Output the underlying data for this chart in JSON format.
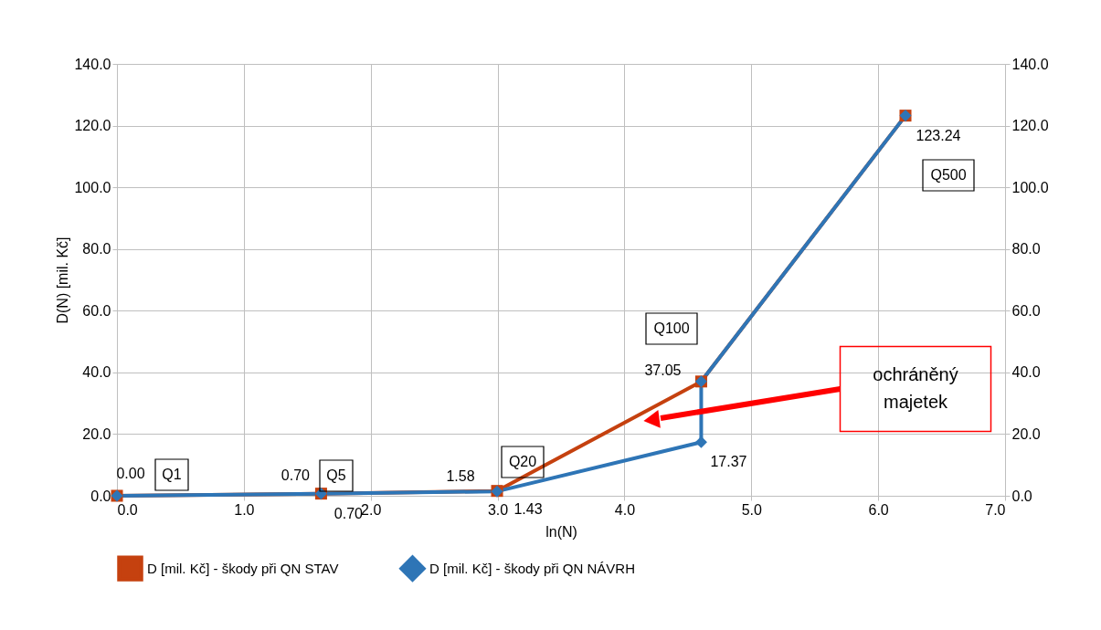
{
  "chart_data": {
    "type": "line",
    "xlabel": "ln(N)",
    "ylabel": "D(N) [mil. Kč]",
    "xlim": [
      0,
      7
    ],
    "xticks": [
      {
        "value": 0,
        "label": "0.0"
      },
      {
        "value": 1,
        "label": "1.0"
      },
      {
        "value": 2,
        "label": "2.0"
      },
      {
        "value": 3,
        "label": "3.0"
      },
      {
        "value": 4,
        "label": "4.0"
      },
      {
        "value": 5,
        "label": "5.0"
      },
      {
        "value": 6,
        "label": "6.0"
      },
      {
        "value": 7,
        "label": "7.0"
      }
    ],
    "ylim": [
      0,
      140
    ],
    "yticks": [
      {
        "value": 0,
        "label": "0.0"
      },
      {
        "value": 20,
        "label": "20.0"
      },
      {
        "value": 40,
        "label": "40.0"
      },
      {
        "value": 60,
        "label": "60.0"
      },
      {
        "value": 80,
        "label": "80.0"
      },
      {
        "value": 100,
        "label": "100.0"
      },
      {
        "value": 120,
        "label": "120.0"
      },
      {
        "value": 140,
        "label": "140.0"
      }
    ],
    "y2lim": [
      0,
      140
    ],
    "y2ticks": [
      {
        "value": 0,
        "label": "0.0"
      },
      {
        "value": 20,
        "label": "20.0"
      },
      {
        "value": 40,
        "label": "40.0"
      },
      {
        "value": 60,
        "label": "60.0"
      },
      {
        "value": 80,
        "label": "80.0"
      },
      {
        "value": 100,
        "label": "100.0"
      },
      {
        "value": 120,
        "label": "120.0"
      },
      {
        "value": 140,
        "label": "140.0"
      }
    ],
    "grid": true,
    "legend": "bottom",
    "line_style": "solid",
    "series": [
      {
        "name": "D [mil. Kč] - škody při QN STAV",
        "color": "#c5410f",
        "marker": "square",
        "x": [
          0,
          1.609,
          2.996,
          4.605,
          6.215
        ],
        "values": [
          0,
          0.7,
          1.58,
          37.05,
          123.24
        ],
        "value_labels": [
          "0.00",
          "0.70",
          "1.58",
          "37.05",
          "123.24"
        ]
      },
      {
        "name": "D [mil. Kč] - škody při QN NÁVRH",
        "color": "#2e75b6",
        "marker": "diamond",
        "x": [
          0,
          1.609,
          2.996,
          4.605,
          4.605,
          6.215
        ],
        "values": [
          0,
          0.7,
          1.43,
          17.37,
          37.05,
          123.24
        ],
        "value_labels": [
          null,
          "0.70",
          "1.43",
          "17.37",
          null,
          null
        ]
      }
    ],
    "annotations": [
      "Q1",
      "Q5",
      "Q20",
      "Q100",
      "Q500",
      "ochráněný majetek"
    ]
  }
}
